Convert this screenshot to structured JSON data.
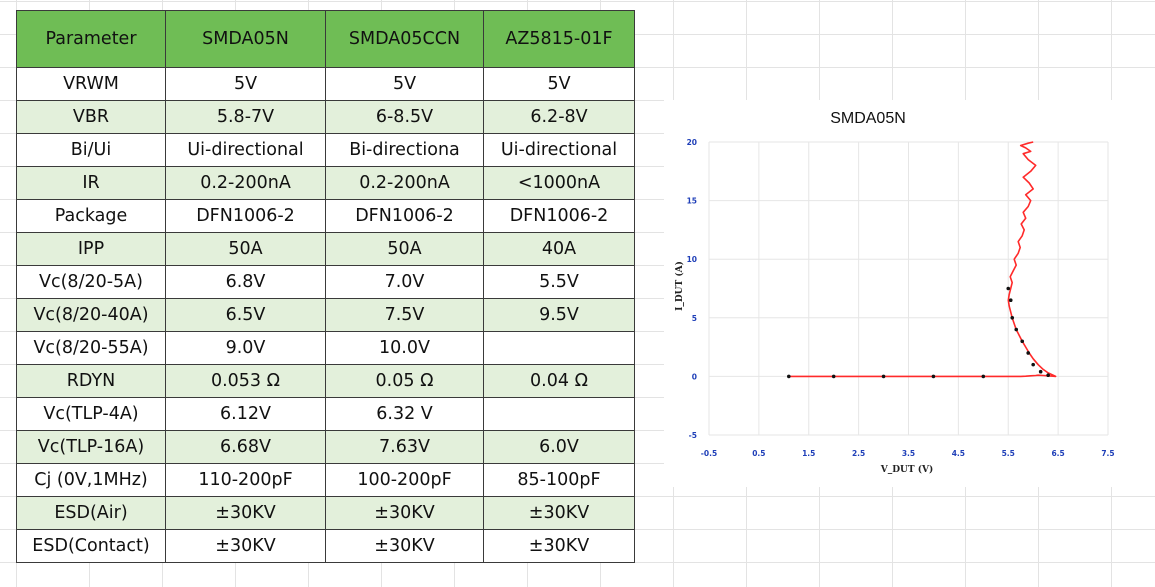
{
  "table": {
    "headers": [
      "Parameter",
      "SMDA05N",
      "SMDA05CCN",
      "AZ5815-01F"
    ],
    "rows": [
      [
        "VRWM",
        "5V",
        "5V",
        "5V"
      ],
      [
        "VBR",
        "5.8-7V",
        "6-8.5V",
        "6.2-8V"
      ],
      [
        "Bi/Ui",
        "Ui-directional",
        "Bi-directiona",
        "Ui-directional"
      ],
      [
        "IR",
        "0.2-200nA",
        "0.2-200nA",
        "<1000nA"
      ],
      [
        "Package",
        "DFN1006-2",
        "DFN1006-2",
        "DFN1006-2"
      ],
      [
        "IPP",
        "50A",
        "50A",
        "40A"
      ],
      [
        "Vc(8/20-5A)",
        "6.8V",
        "7.0V",
        "5.5V"
      ],
      [
        "Vc(8/20-40A)",
        "6.5V",
        "7.5V",
        "9.5V"
      ],
      [
        "Vc(8/20-55A)",
        "9.0V",
        "10.0V",
        ""
      ],
      [
        "RDYN",
        "0.053  Ω",
        "0.05  Ω",
        "0.04  Ω"
      ],
      [
        "Vc(TLP-4A)",
        "6.12V",
        "6.32 V",
        ""
      ],
      [
        "Vc(TLP-16A)",
        "6.68V",
        "7.63V",
        "6.0V"
      ],
      [
        "Cj (0V,1MHz)",
        "110-200pF",
        "100-200pF",
        "85-100pF"
      ],
      [
        "ESD(Air)",
        "±30KV",
        "±30KV",
        "±30KV"
      ],
      [
        "ESD(Contact)",
        "±30KV",
        "±30KV",
        "±30KV"
      ]
    ]
  },
  "colors": {
    "header_bg": "#6fbd55",
    "alt_row_bg": "#e3f0db",
    "tick_color": "#1f3fb8",
    "curve_color": "#ff2a2a",
    "marker_color": "#111111"
  },
  "chart_data": {
    "type": "line",
    "title": "SMDA05N",
    "xlabel": "V_DUT (V)",
    "ylabel": "I_DUT (A)",
    "xlim": [
      -0.5,
      7.5
    ],
    "ylim": [
      -5,
      20
    ],
    "x_ticks": [
      "-0.5",
      "0.5",
      "1.5",
      "2.5",
      "3.5",
      "4.5",
      "5.5",
      "6.5",
      "7.5"
    ],
    "y_ticks": [
      "-5",
      "0",
      "5",
      "10",
      "15",
      "20"
    ],
    "grid": true,
    "series": [
      {
        "x": [
          1.1,
          2.0,
          3.0,
          4.0,
          5.0,
          5.5,
          5.75,
          5.85,
          5.95,
          6.05,
          6.1,
          6.2,
          6.3,
          6.4,
          6.45,
          6.3,
          6.2,
          6.1,
          6.0,
          5.92,
          5.85,
          5.78,
          5.72,
          5.66,
          5.62,
          5.58,
          5.55,
          5.52,
          5.5,
          5.52,
          5.55,
          5.58,
          5.54,
          5.6,
          5.66,
          5.62,
          5.7,
          5.74,
          5.7,
          5.78,
          5.82,
          5.76,
          5.85,
          5.8,
          5.9,
          5.95,
          5.85,
          6.0,
          5.92,
          5.8,
          5.95,
          6.05,
          5.9,
          5.8,
          5.95,
          5.85,
          5.75,
          5.9,
          6.0
        ],
        "y": [
          0.0,
          0.0,
          0.0,
          0.0,
          0.0,
          0.0,
          0.0,
          0.02,
          0.05,
          0.08,
          0.1,
          0.08,
          0.05,
          0.02,
          0.0,
          0.3,
          0.6,
          1.0,
          1.5,
          2.0,
          2.5,
          3.0,
          3.5,
          4.0,
          4.5,
          5.0,
          5.5,
          6.0,
          6.5,
          7.0,
          7.5,
          8.0,
          8.5,
          9.0,
          9.5,
          10.0,
          10.5,
          11.0,
          11.5,
          12.0,
          12.5,
          13.0,
          13.5,
          14.0,
          14.5,
          15.0,
          15.5,
          16.0,
          16.5,
          17.0,
          17.5,
          18.0,
          18.5,
          19.0,
          19.2,
          19.5,
          19.7,
          19.9,
          20.0
        ],
        "markers_x": [
          1.1,
          2.0,
          3.0,
          4.0,
          5.0,
          5.55,
          5.5,
          5.58,
          5.66,
          5.78,
          5.9,
          6.0,
          6.15,
          6.3
        ],
        "markers_y": [
          0.0,
          0.0,
          0.0,
          0.0,
          0.0,
          6.5,
          7.5,
          5.0,
          4.0,
          3.0,
          2.0,
          1.0,
          0.4,
          0.1
        ]
      }
    ]
  }
}
